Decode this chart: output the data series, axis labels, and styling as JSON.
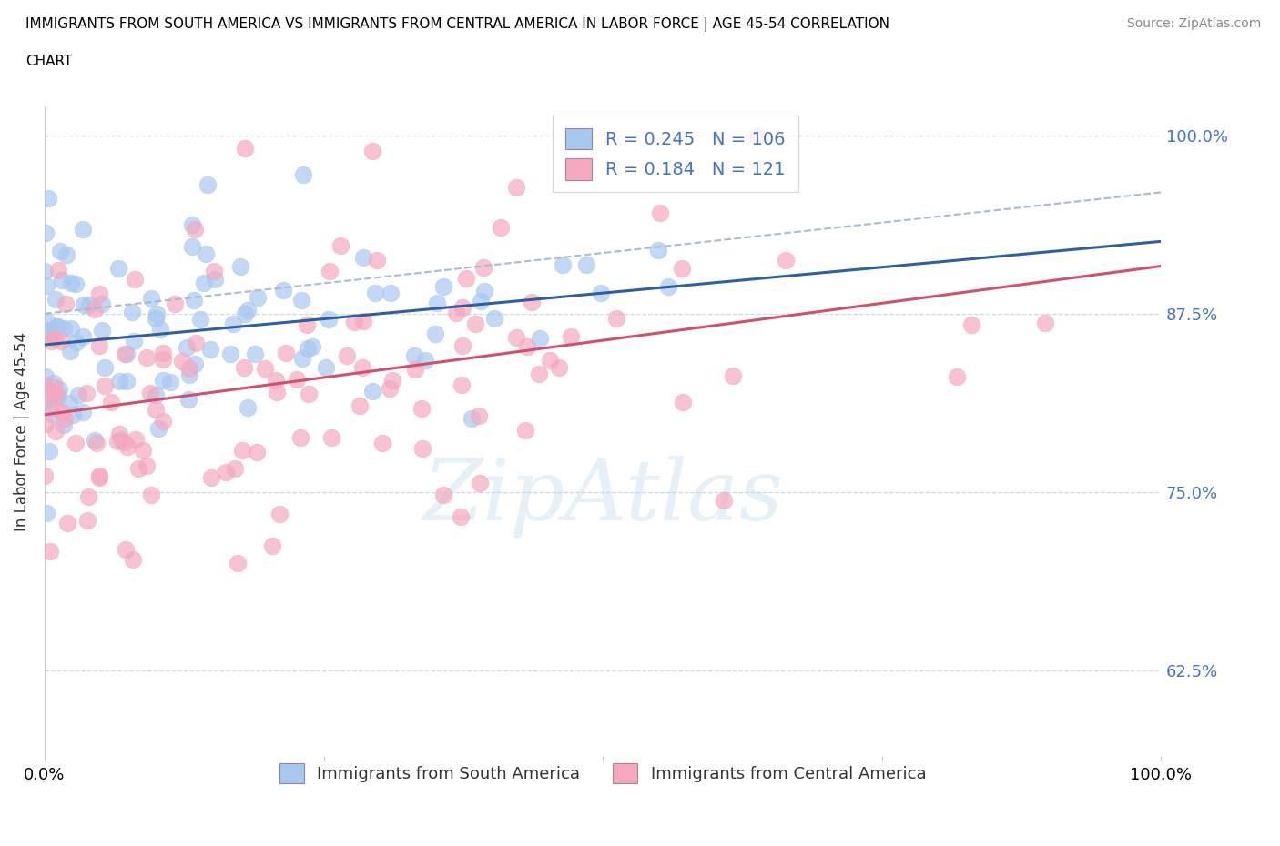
{
  "title_line1": "IMMIGRANTS FROM SOUTH AMERICA VS IMMIGRANTS FROM CENTRAL AMERICA IN LABOR FORCE | AGE 45-54 CORRELATION",
  "title_line2": "CHART",
  "source_text": "Source: ZipAtlas.com",
  "ylabel": "In Labor Force | Age 45-54",
  "xlim": [
    0.0,
    1.0
  ],
  "ylim": [
    0.565,
    1.02
  ],
  "yticks": [
    0.625,
    0.75,
    0.875,
    1.0
  ],
  "ytick_labels": [
    "62.5%",
    "75.0%",
    "87.5%",
    "100.0%"
  ],
  "blue_color": "#A8C8F0",
  "pink_color": "#F5A8C0",
  "blue_line_color": "#2E5FA3",
  "pink_line_color": "#D05070",
  "gray_dash_color": "#AABBD0",
  "label_color": "#4472C4",
  "grid_color": "#C8D8E8",
  "R_blue": 0.245,
  "N_blue": 106,
  "R_pink": 0.184,
  "N_pink": 121,
  "watermark": "ZipAtlas",
  "legend_label_blue": "Immigrants from South America",
  "legend_label_pink": "Immigrants from Central America"
}
